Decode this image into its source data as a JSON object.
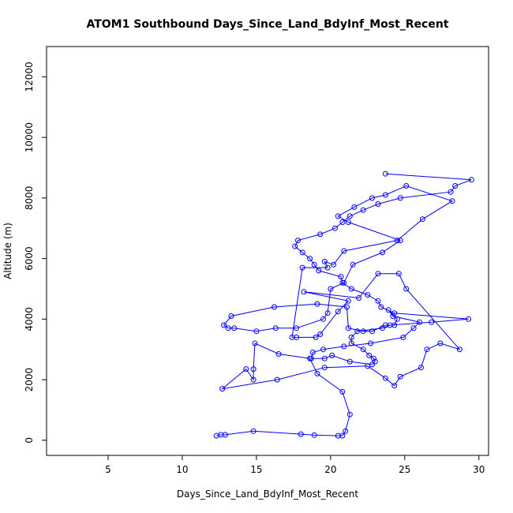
{
  "chart_data": {
    "type": "scatter",
    "mode": "lines+markers",
    "title": "ATOM1 Southbound Days_Since_Land_BdyInf_Most_Recent",
    "xlabel": "Days_Since_Land_BdyInf_Most_Recent",
    "ylabel": "Altitude (m)",
    "xlim": [
      0.85,
      30.65
    ],
    "ylim": [
      -500,
      13000
    ],
    "xticks": [
      5,
      10,
      15,
      20,
      25,
      30
    ],
    "yticks": [
      0,
      2000,
      4000,
      6000,
      8000,
      10000,
      12000
    ],
    "grid": false,
    "color": "#0000FF",
    "marker": "open-circle",
    "series": [
      {
        "x": [
          12.3,
          12.6,
          12.9,
          14.8,
          18.0,
          18.9,
          20.5,
          20.8,
          21.0,
          21.3,
          20.8,
          19.1,
          18.6,
          16.5,
          14.9,
          14.8,
          14.8,
          14.3,
          12.7,
          16.4,
          19.6,
          22.5,
          23.7,
          24.3,
          24.7,
          26.1,
          26.5,
          27.4,
          28.7,
          25.1,
          24.6,
          23.2,
          21.9,
          18.2,
          21.2,
          20.5,
          19.3,
          19.0,
          17.7,
          17.4,
          18.1,
          19.8,
          19.6,
          20.2,
          20.9,
          24.5,
          26.2,
          28.2,
          25.1,
          23.7,
          22.8,
          21.6,
          20.5,
          21.2,
          24.7,
          23.5,
          21.5,
          20.9,
          20.0,
          19.8,
          19.5,
          17.7,
          16.3,
          15.0,
          13.5,
          13.1,
          12.8,
          13.3,
          16.2,
          19.1,
          21.1,
          21.2,
          22.2,
          22.8,
          23.7,
          24.3,
          24.5,
          23.9,
          24.2,
          26.0,
          25.6,
          24.9,
          22.7,
          20.9,
          19.5,
          18.8,
          18.7,
          19.6,
          20.1,
          21.3,
          22.8,
          23.0,
          22.9,
          22.6,
          22.2,
          21.4,
          21.4,
          21.8,
          23.5,
          24.0,
          26.8,
          29.3,
          24.3,
          23.4,
          23.2,
          22.5,
          21.4,
          20.8,
          20.7,
          19.2,
          18.9,
          18.6,
          18.1,
          17.6,
          17.8,
          19.3,
          20.3,
          20.8,
          21.3,
          22.2,
          23.2,
          24.7,
          28.1,
          28.4,
          29.5,
          23.7
        ],
        "y": [
          150,
          180,
          180,
          300,
          200,
          170,
          150,
          150,
          300,
          850,
          1600,
          2200,
          2700,
          2850,
          3200,
          2350,
          2000,
          2350,
          1700,
          2000,
          2400,
          2450,
          2050,
          1800,
          2100,
          2400,
          3000,
          3200,
          3000,
          5000,
          5500,
          5500,
          4700,
          4900,
          4600,
          4250,
          3500,
          3400,
          3400,
          3400,
          5700,
          5700,
          5900,
          5800,
          6250,
          6600,
          7300,
          7900,
          8400,
          8100,
          8000,
          7700,
          7400,
          7200,
          6600,
          6200,
          5800,
          5200,
          5000,
          4200,
          4000,
          3700,
          3700,
          3600,
          3700,
          3700,
          3800,
          4100,
          4400,
          4500,
          4400,
          3700,
          3600,
          3600,
          3800,
          3800,
          4000,
          4300,
          4100,
          3900,
          3700,
          3400,
          3200,
          3100,
          3000,
          2900,
          2700,
          2700,
          2800,
          2600,
          2500,
          2600,
          2700,
          2800,
          3000,
          3200,
          3400,
          3600,
          3700,
          3800,
          3900,
          4000,
          4200,
          4400,
          4600,
          4800,
          5000,
          5200,
          5400,
          5600,
          5800,
          6000,
          6200,
          6400,
          6600,
          6800,
          7000,
          7200,
          7400,
          7600,
          7800,
          8000,
          8200,
          8400,
          8600,
          8800
        ]
      }
    ]
  }
}
